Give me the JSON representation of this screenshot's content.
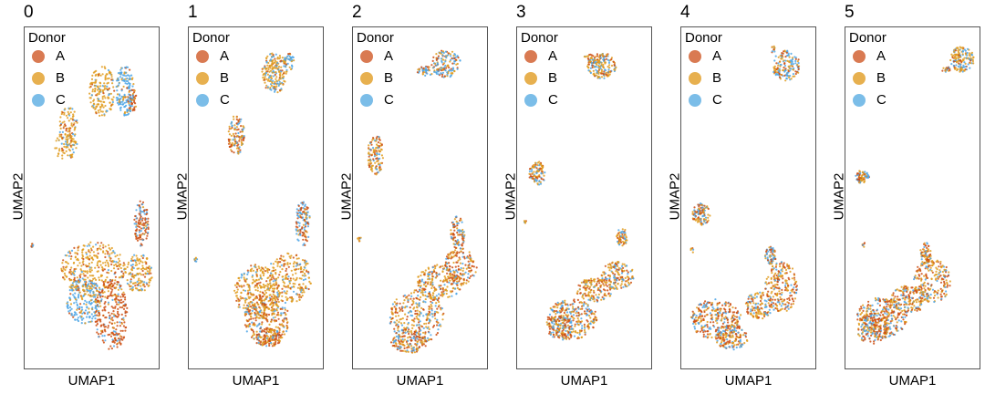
{
  "chart_data": [
    {
      "type": "scatter",
      "title": "0",
      "xlabel": "UMAP1",
      "ylabel": "UMAP2",
      "legend_title": "Donor",
      "legend": [
        "A",
        "B",
        "C"
      ],
      "legend_position": "top-left",
      "colors": [
        "#d97a52",
        "#e7b04f",
        "#7bbde8"
      ],
      "point_colors": [
        "#cc4e12",
        "#e09c1e",
        "#4ea6e6"
      ],
      "grid": false
    },
    {
      "type": "scatter",
      "title": "1",
      "xlabel": "UMAP1",
      "ylabel": "UMAP2",
      "legend_title": "Donor",
      "legend": [
        "A",
        "B",
        "C"
      ],
      "legend_position": "top-left",
      "colors": [
        "#d97a52",
        "#e7b04f",
        "#7bbde8"
      ],
      "point_colors": [
        "#cc4e12",
        "#e09c1e",
        "#4ea6e6"
      ],
      "grid": false
    },
    {
      "type": "scatter",
      "title": "2",
      "xlabel": "UMAP1",
      "ylabel": "UMAP2",
      "legend_title": "Donor",
      "legend": [
        "A",
        "B",
        "C"
      ],
      "legend_position": "top-left",
      "colors": [
        "#d97a52",
        "#e7b04f",
        "#7bbde8"
      ],
      "point_colors": [
        "#cc4e12",
        "#e09c1e",
        "#4ea6e6"
      ],
      "grid": false
    },
    {
      "type": "scatter",
      "title": "3",
      "xlabel": "UMAP1",
      "ylabel": "UMAP2",
      "legend_title": "Donor",
      "legend": [
        "A",
        "B",
        "C"
      ],
      "legend_position": "top-left",
      "colors": [
        "#d97a52",
        "#e7b04f",
        "#7bbde8"
      ],
      "point_colors": [
        "#cc4e12",
        "#e09c1e",
        "#4ea6e6"
      ],
      "grid": false
    },
    {
      "type": "scatter",
      "title": "4",
      "xlabel": "UMAP1",
      "ylabel": "UMAP2",
      "legend_title": "Donor",
      "legend": [
        "A",
        "B",
        "C"
      ],
      "legend_position": "top-left",
      "colors": [
        "#d97a52",
        "#e7b04f",
        "#7bbde8"
      ],
      "point_colors": [
        "#cc4e12",
        "#e09c1e",
        "#4ea6e6"
      ],
      "grid": false
    },
    {
      "type": "scatter",
      "title": "5",
      "xlabel": "UMAP1",
      "ylabel": "UMAP2",
      "legend_title": "Donor",
      "legend": [
        "A",
        "B",
        "C"
      ],
      "legend_position": "top-left",
      "colors": [
        "#d97a52",
        "#e7b04f",
        "#7bbde8"
      ],
      "point_colors": [
        "#cc4e12",
        "#e09c1e",
        "#4ea6e6"
      ],
      "grid": false
    }
  ]
}
